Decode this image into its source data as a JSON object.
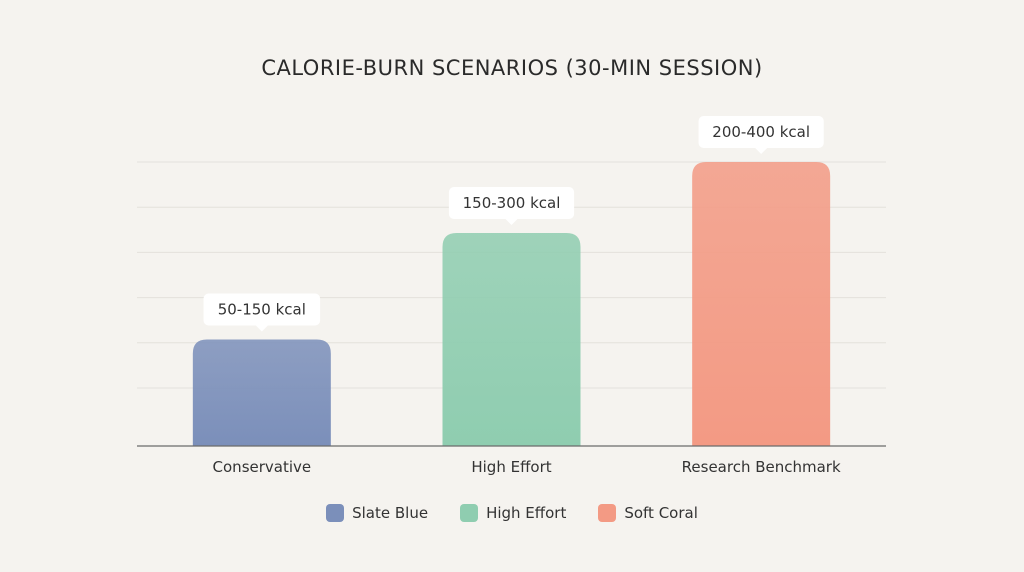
{
  "chart_data": {
    "type": "bar",
    "title": "CALORIE-BURN SCENARIOS (30-MIN SESSION)",
    "xlabel": "",
    "ylabel": "",
    "categories": [
      "Conservative",
      "High Effort",
      "Research Benchmark"
    ],
    "ranges": [
      [
        50,
        150
      ],
      [
        150,
        300
      ],
      [
        200,
        400
      ]
    ],
    "values": [
      150,
      300,
      400
    ],
    "data_labels": [
      "50-150 kcal",
      "150-300 kcal",
      "200-400 kcal"
    ],
    "colors": [
      "#7b8fba",
      "#8fcdb0",
      "#f39a84"
    ],
    "ylim": [
      0,
      400
    ],
    "grid": true,
    "legend": {
      "placement": "bottom",
      "entries": [
        {
          "label": "Slate Blue",
          "color": "#7b8fba"
        },
        {
          "label": "High Effort",
          "color": "#8fcdb0"
        },
        {
          "label": "Soft Coral",
          "color": "#f39a84"
        }
      ]
    }
  }
}
